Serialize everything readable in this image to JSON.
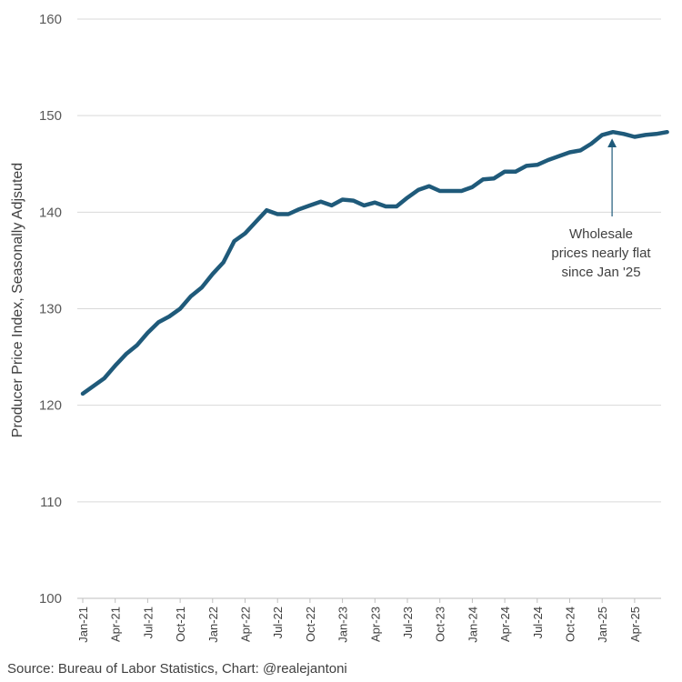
{
  "chart_data": {
    "type": "line",
    "title": "",
    "xlabel": "",
    "ylabel": "Producer Price Index, Seasonally Adjsuted",
    "ylim": [
      100,
      160
    ],
    "yticks": [
      100,
      110,
      120,
      130,
      140,
      150,
      160
    ],
    "grid": true,
    "x": [
      "Jan-21",
      "Feb-21",
      "Mar-21",
      "Apr-21",
      "May-21",
      "Jun-21",
      "Jul-21",
      "Aug-21",
      "Sep-21",
      "Oct-21",
      "Nov-21",
      "Dec-21",
      "Jan-22",
      "Feb-22",
      "Mar-22",
      "Apr-22",
      "May-22",
      "Jun-22",
      "Jul-22",
      "Aug-22",
      "Sep-22",
      "Oct-22",
      "Nov-22",
      "Dec-22",
      "Jan-23",
      "Feb-23",
      "Mar-23",
      "Apr-23",
      "May-23",
      "Jun-23",
      "Jul-23",
      "Aug-23",
      "Sep-23",
      "Oct-23",
      "Nov-23",
      "Dec-23",
      "Jan-24",
      "Feb-24",
      "Mar-24",
      "Apr-24",
      "May-24",
      "Jun-24",
      "Jul-24",
      "Aug-24",
      "Sep-24",
      "Oct-24",
      "Nov-24",
      "Dec-24",
      "Jan-25",
      "Feb-25",
      "Mar-25",
      "Apr-25",
      "May-25",
      "Jun-25",
      "Jul-25"
    ],
    "x_tick_labels": [
      "Jan-21",
      "Apr-21",
      "Jul-21",
      "Oct-21",
      "Jan-22",
      "Apr-22",
      "Jul-22",
      "Oct-22",
      "Jan-23",
      "Apr-23",
      "Jul-23",
      "Oct-23",
      "Jan-24",
      "Apr-24",
      "Jul-24",
      "Oct-24",
      "Jan-25",
      "Apr-25"
    ],
    "series": [
      {
        "name": "Producer Price Index",
        "color": "#1f5a7a",
        "values": [
          121.2,
          122.0,
          122.8,
          124.1,
          125.3,
          126.2,
          127.5,
          128.6,
          129.2,
          130.0,
          131.3,
          132.2,
          133.6,
          134.8,
          137.0,
          137.8,
          139.0,
          140.2,
          139.8,
          139.8,
          140.3,
          140.7,
          141.1,
          140.7,
          141.3,
          141.2,
          140.7,
          141.0,
          140.6,
          140.6,
          141.5,
          142.3,
          142.7,
          142.2,
          142.2,
          142.2,
          142.6,
          143.4,
          143.5,
          144.2,
          144.2,
          144.8,
          144.9,
          145.4,
          145.8,
          146.2,
          146.4,
          147.1,
          148.0,
          148.3,
          148.1,
          147.8,
          148.0,
          148.1,
          148.3
        ]
      }
    ],
    "annotation": {
      "lines": [
        "Wholesale",
        "prices nearly flat",
        "since Jan '25"
      ],
      "target_x": "Feb-25"
    },
    "source": "Source: Bureau of Labor Statistics, Chart: @realejantoni"
  },
  "colors": {
    "line": "#1f5a7a",
    "grid": "#d9d9d9",
    "axis": "#bfbfbf"
  }
}
